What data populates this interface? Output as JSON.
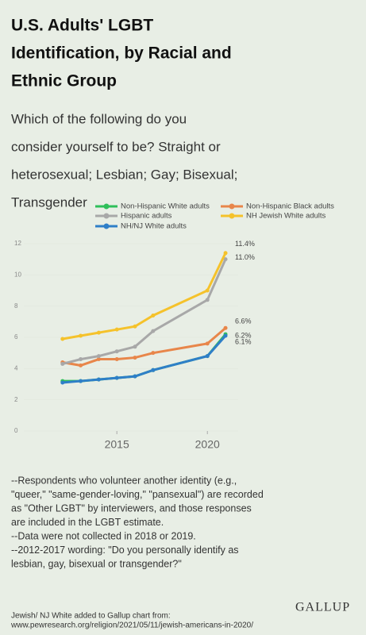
{
  "chart_data": {
    "type": "line",
    "title_lines": [
      "U.S. Adults' LGBT",
      "Identification, by Racial and",
      "Ethnic Group"
    ],
    "subtitle_lines": [
      "Which of the following do you",
      "consider yourself to be? Straight or",
      "heterosexual; Lesbian; Gay; Bisexual;",
      "Transgender"
    ],
    "x": [
      2012,
      2013,
      2014,
      2015,
      2016,
      2017,
      2020,
      2021
    ],
    "xlim": [
      2010.3,
      2021.7
    ],
    "xticks": [
      2015,
      2020
    ],
    "ylim": [
      0,
      12
    ],
    "yticks": [
      0,
      2,
      4,
      6,
      8,
      10,
      12
    ],
    "series": [
      {
        "name": "Non-Hispanic White adults",
        "color": "#2fbf5a",
        "values": [
          3.2,
          3.2,
          3.3,
          3.4,
          3.5,
          3.9,
          4.8,
          6.2
        ],
        "value_labels": [
          null,
          null,
          null,
          null,
          null,
          null,
          null,
          "6.2%"
        ]
      },
      {
        "name": "Non-Hispanic Black adults",
        "color": "#e8864a",
        "values": [
          4.4,
          4.2,
          4.6,
          4.6,
          4.7,
          5.0,
          5.6,
          6.6
        ],
        "value_labels": [
          null,
          null,
          null,
          null,
          null,
          null,
          null,
          "6.6%"
        ]
      },
      {
        "name": "Hispanic adults",
        "color": "#a8a8a8",
        "values": [
          4.3,
          4.6,
          4.8,
          5.1,
          5.4,
          6.4,
          8.4,
          11.0
        ],
        "value_labels": [
          null,
          null,
          null,
          null,
          null,
          null,
          null,
          "11.0%"
        ]
      },
      {
        "name": "NH Jewish White adults",
        "color": "#f5c22b",
        "values": [
          5.9,
          6.1,
          6.3,
          6.5,
          6.7,
          7.4,
          9.0,
          11.4
        ],
        "value_labels": [
          null,
          null,
          null,
          null,
          null,
          null,
          null,
          "11.4%"
        ]
      },
      {
        "name": "NH/NJ White adults",
        "color": "#2f7fc8",
        "values": [
          3.1,
          3.2,
          3.3,
          3.4,
          3.5,
          3.9,
          4.8,
          6.1
        ],
        "value_labels": [
          null,
          null,
          null,
          null,
          null,
          null,
          null,
          "6.1%"
        ]
      }
    ],
    "notes": [
      "--Respondents who volunteer another identity (e.g.,",
      "\"queer,\" \"same-gender-loving,\" \"pansexual\") are recorded",
      "as \"Other LGBT\" by interviewers, and those responses",
      "are included in the LGBT estimate.",
      "--Data were not collected in 2018 or 2019.",
      "--2012-2017 wording: \"Do you personally identify as",
      "lesbian, gay, bisexual or transgender?\""
    ],
    "brand": "GALLUP",
    "source_lines": [
      "Jewish/ NJ White added to Gallup chart from:",
      "www.pewresearch.org/religion/2021/05/11/jewish-americans-in-2020/"
    ]
  }
}
